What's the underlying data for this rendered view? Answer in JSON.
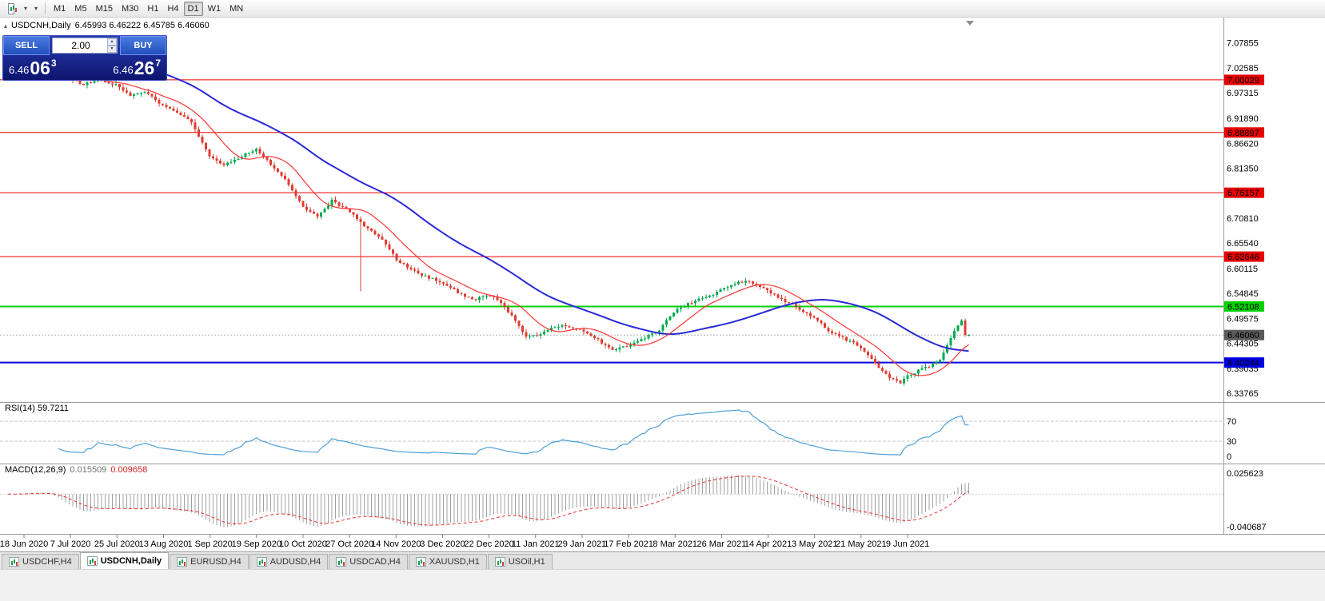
{
  "toolbar": {
    "caret": "▾",
    "timeframes": [
      {
        "label": "M1",
        "active": false
      },
      {
        "label": "M5",
        "active": false
      },
      {
        "label": "M15",
        "active": false
      },
      {
        "label": "M30",
        "active": false
      },
      {
        "label": "H1",
        "active": false
      },
      {
        "label": "H4",
        "active": false
      },
      {
        "label": "D1",
        "active": true
      },
      {
        "label": "W1",
        "active": false
      },
      {
        "label": "MN",
        "active": false
      }
    ]
  },
  "chart": {
    "collapse_icon": "▴",
    "title": "USDCNH,Daily",
    "ohlc": "6.45993 6.46222 6.45785 6.46060"
  },
  "trade_panel": {
    "sell_label": "SELL",
    "buy_label": "BUY",
    "volume": "2.00",
    "spin_up": "▲",
    "spin_down": "▼",
    "sell": {
      "prefix": "6.46",
      "big": "06",
      "sup": "3"
    },
    "buy": {
      "prefix": "6.46",
      "big": "26",
      "sup": "7"
    }
  },
  "rsi_panel": {
    "label": "RSI(14) 59.7211"
  },
  "macd_panel": {
    "name": "MACD(12,26,9)",
    "value_main": "0.015509",
    "value_signal": "0.009658"
  },
  "tabs": [
    {
      "label": "USDCHF,H4",
      "active": false
    },
    {
      "label": "USDCNH,Daily",
      "active": true
    },
    {
      "label": "EURUSD,H4",
      "active": false
    },
    {
      "label": "AUDUSD,H4",
      "active": false
    },
    {
      "label": "USDCAD,H4",
      "active": false
    },
    {
      "label": "XAUUSD,H1",
      "active": false
    },
    {
      "label": "USOil,H1",
      "active": false
    }
  ],
  "chart_data": {
    "type": "candlestick",
    "symbol": "USDCNH",
    "timeframe": "Daily",
    "num_candles": 268,
    "noise": 0.005,
    "wick": 0.007,
    "last_candle": {
      "o": 6.45993,
      "h": 6.46222,
      "l": 6.45785,
      "c": 6.4606
    },
    "close_anchors": [
      [
        0,
        7.07
      ],
      [
        4,
        7.072
      ],
      [
        8,
        7.078
      ],
      [
        12,
        7.06
      ],
      [
        17,
        7.005
      ],
      [
        21,
        6.99
      ],
      [
        25,
        7.002
      ],
      [
        30,
        6.99
      ],
      [
        34,
        6.965
      ],
      [
        38,
        6.975
      ],
      [
        43,
        6.945
      ],
      [
        47,
        6.93
      ],
      [
        51,
        6.91
      ],
      [
        56,
        6.84
      ],
      [
        60,
        6.82
      ],
      [
        64,
        6.835
      ],
      [
        69,
        6.855
      ],
      [
        73,
        6.82
      ],
      [
        77,
        6.79
      ],
      [
        82,
        6.73
      ],
      [
        86,
        6.71
      ],
      [
        90,
        6.745
      ],
      [
        95,
        6.72
      ],
      [
        98,
        6.7
      ],
      [
        100,
        6.685
      ],
      [
        104,
        6.66
      ],
      [
        108,
        6.62
      ],
      [
        112,
        6.6
      ],
      [
        116,
        6.585
      ],
      [
        121,
        6.57
      ],
      [
        125,
        6.55
      ],
      [
        129,
        6.535
      ],
      [
        134,
        6.545
      ],
      [
        138,
        6.52
      ],
      [
        141,
        6.49
      ],
      [
        144,
        6.455
      ],
      [
        147,
        6.46
      ],
      [
        151,
        6.475
      ],
      [
        155,
        6.48
      ],
      [
        160,
        6.47
      ],
      [
        164,
        6.45
      ],
      [
        168,
        6.43
      ],
      [
        173,
        6.44
      ],
      [
        177,
        6.455
      ],
      [
        181,
        6.47
      ],
      [
        184,
        6.5
      ],
      [
        186,
        6.515
      ],
      [
        190,
        6.53
      ],
      [
        194,
        6.54
      ],
      [
        198,
        6.555
      ],
      [
        202,
        6.57
      ],
      [
        206,
        6.575
      ],
      [
        211,
        6.555
      ],
      [
        215,
        6.535
      ],
      [
        219,
        6.52
      ],
      [
        223,
        6.5
      ],
      [
        226,
        6.485
      ],
      [
        228,
        6.47
      ],
      [
        232,
        6.455
      ],
      [
        237,
        6.435
      ],
      [
        241,
        6.4
      ],
      [
        245,
        6.37
      ],
      [
        248,
        6.36
      ],
      [
        250,
        6.375
      ],
      [
        253,
        6.385
      ],
      [
        256,
        6.395
      ],
      [
        259,
        6.41
      ],
      [
        261,
        6.44
      ],
      [
        263,
        6.47
      ],
      [
        265,
        6.49
      ],
      [
        266,
        6.462
      ],
      [
        267,
        6.4606
      ]
    ],
    "special_wicks": [
      {
        "index": 98,
        "low": 6.553
      }
    ],
    "candle_up_color": "#00A94F",
    "candle_down_color": "#E03C32",
    "ma_fast": {
      "period": 12,
      "color": "#ff3333"
    },
    "ma_slow": {
      "period": 45,
      "color": "#2929d6"
    },
    "hlines": [
      {
        "price": 7.00029,
        "label": "7.00029",
        "color": "#e60000",
        "width": 1
      },
      {
        "price": 6.88897,
        "label": "6.88897",
        "color": "#e60000",
        "width": 1
      },
      {
        "price": 6.76157,
        "label": "6.76157",
        "color": "#e60000",
        "width": 1
      },
      {
        "price": 6.62646,
        "label": "6.62646",
        "color": "#e60000",
        "width": 1
      },
      {
        "price": 6.52108,
        "label": "6.52108",
        "color": "#00d200",
        "width": 2
      },
      {
        "price": 6.40244,
        "label": "6.40244",
        "color": "#0000e0",
        "width": 2
      }
    ],
    "bid_line": {
      "price": 6.4606,
      "label": "6.46060",
      "line_color": "#b4b4b4",
      "badge_color": "#5a5a5a"
    },
    "price_axis_labels": [
      "7.07855",
      "7.02585",
      "6.97315",
      "6.91890",
      "6.86620",
      "6.81350",
      "6.76080",
      "6.70810",
      "6.65540",
      "6.60115",
      "6.54845",
      "6.49575",
      "6.44305",
      "6.39035",
      "6.33765"
    ],
    "rsi": {
      "period": 14,
      "color": "#4fa0d8",
      "levels": [
        70,
        30
      ],
      "axis_labels": [
        "70",
        "30",
        "0"
      ]
    },
    "macd": {
      "fast": 12,
      "slow": 26,
      "signal": 9,
      "bar_color": "#a0a0a0",
      "signal_color": "#e83030",
      "axis_labels": [
        "0.025623",
        "-0.040687"
      ]
    },
    "dates": [
      "18 Jun 2020",
      "7 Jul 2020",
      "25 Jul 2020",
      "13 Aug 2020",
      "1 Sep 2020",
      "19 Sep 2020",
      "10 Oct 2020",
      "27 Oct 2020",
      "14 Nov 2020",
      "3 Dec 2020",
      "22 Dec 2020",
      "11 Jan 2021",
      "29 Jan 2021",
      "17 Feb 2021",
      "8 Mar 2021",
      "26 Mar 2021",
      "14 Apr 2021",
      "3 May 2021",
      "21 May 2021",
      "9 Jun 2021"
    ]
  }
}
